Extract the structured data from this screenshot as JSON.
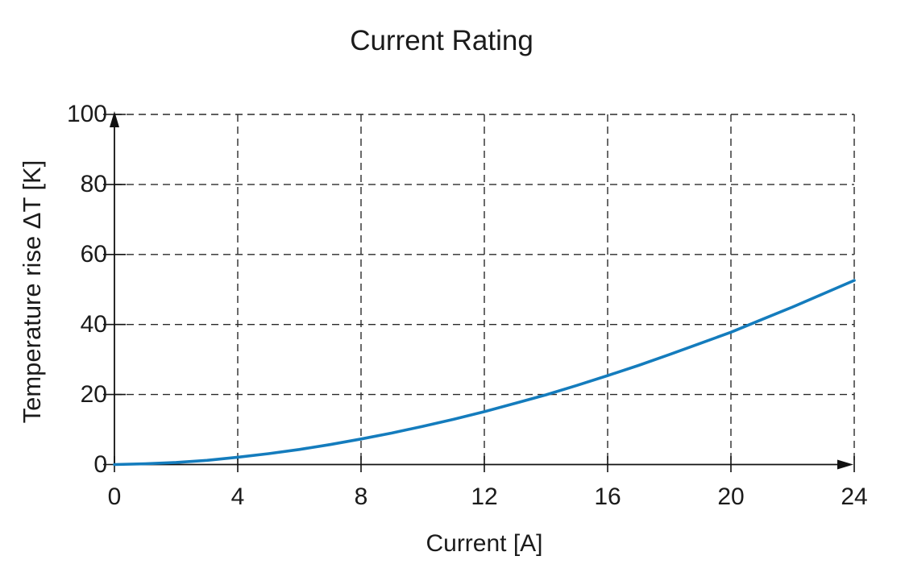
{
  "figure": {
    "background": "#ffffff",
    "text_color": "#1b1b1b",
    "grid_style": "dashed"
  },
  "chart_data": {
    "type": "line",
    "title": "Current Rating",
    "xlabel": "Current [A]",
    "ylabel": "Temperature rise ΔT [K]",
    "xlim": [
      0,
      24
    ],
    "ylim": [
      0,
      100
    ],
    "x_ticks": [
      0,
      4,
      8,
      12,
      16,
      20,
      24
    ],
    "y_ticks": [
      0,
      20,
      40,
      60,
      80,
      100
    ],
    "grid": "dashed, both axes, at every tick",
    "legend_position": "none",
    "axis_arrows": true,
    "series": [
      {
        "name": "temperature-rise-vs-current",
        "color": "#147cbd",
        "x": [
          0,
          1,
          2,
          3,
          4,
          5,
          6,
          7,
          8,
          9,
          10,
          11,
          12,
          13,
          14,
          15,
          16,
          17,
          18,
          19,
          20,
          21,
          22,
          23,
          24
        ],
        "y": [
          0,
          0.2,
          0.6,
          1.2,
          2.1,
          3.1,
          4.3,
          5.7,
          7.3,
          9.0,
          10.9,
          12.9,
          15.1,
          17.5,
          19.9,
          22.6,
          25.4,
          28.3,
          31.4,
          34.6,
          37.8,
          41.4,
          45.0,
          48.8,
          52.6
        ]
      }
    ]
  }
}
